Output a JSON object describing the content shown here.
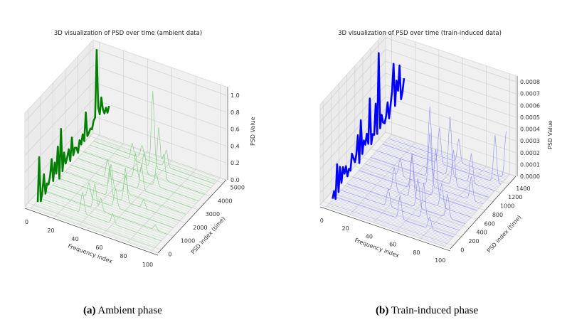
{
  "chart_data": [
    {
      "type": "line",
      "title": "3D visualization of PSD over time (ambient data)",
      "xlabel": "Frequency index",
      "ylabel": "PSD index (time)",
      "zlabel": "PSD Value",
      "xlim": [
        -5,
        105
      ],
      "ylim": [
        -250,
        5250
      ],
      "zlim": [
        0,
        1.1
      ],
      "xticks": [
        "0",
        "20",
        "40",
        "60",
        "80",
        "100"
      ],
      "yticks": [
        "0",
        "1000",
        "2000",
        "3000",
        "4000",
        "5000"
      ],
      "zticks": [
        "0.0",
        "0.2",
        "0.4",
        "0.6",
        "0.8",
        "1.0"
      ],
      "highlight_color": "#008000",
      "trace_color": "#8fcf8f",
      "num_traces": 40,
      "highlight_series": {
        "x": 0,
        "t_step": 125,
        "values": [
          0.05,
          0.56,
          0.02,
          0.1,
          0.3,
          0.05,
          0.15,
          0.12,
          0.2,
          0.38,
          0.1,
          0.3,
          0.15,
          0.45,
          0.05,
          0.62,
          0.1,
          0.3,
          0.15,
          0.2,
          0.28,
          0.12,
          0.38,
          0.15,
          0.22,
          0.2,
          0.12,
          0.25,
          0.18,
          0.28,
          0.18,
          0.5,
          0.2,
          0.22,
          0.25,
          0.22,
          0.3,
          0.32,
          1.1,
          0.4,
          0.3,
          0.48,
          0.32,
          0.25,
          0.3,
          0.22,
          0.28
        ]
      },
      "background_traces": [
        {
          "t": 500,
          "peaks": [
            [
              35,
              0.25
            ],
            [
              60,
              0.12
            ]
          ]
        },
        {
          "t": 1000,
          "peaks": [
            [
              40,
              0.3
            ],
            [
              45,
              0.15
            ],
            [
              90,
              0.06
            ]
          ]
        },
        {
          "t": 1500,
          "peaks": [
            [
              30,
              0.18
            ],
            [
              52,
              0.22
            ]
          ]
        },
        {
          "t": 2000,
          "peaks": [
            [
              42,
              0.35
            ],
            [
              55,
              0.4
            ],
            [
              70,
              0.1
            ]
          ]
        },
        {
          "t": 2500,
          "peaks": [
            [
              38,
              0.28
            ],
            [
              50,
              0.2
            ]
          ]
        },
        {
          "t": 3000,
          "peaks": [
            [
              30,
              0.22
            ],
            [
              58,
              0.3
            ]
          ]
        },
        {
          "t": 3500,
          "peaks": [
            [
              48,
              0.3
            ],
            [
              65,
              0.15
            ]
          ]
        },
        {
          "t": 4000,
          "peaks": [
            [
              50,
              0.25
            ],
            [
              62,
              0.6
            ],
            [
              66,
              0.3
            ]
          ]
        },
        {
          "t": 4500,
          "peaks": [
            [
              52,
              0.9
            ],
            [
              35,
              0.2
            ]
          ]
        },
        {
          "t": 4800,
          "peaks": [
            [
              40,
              0.15
            ],
            [
              60,
              0.2
            ]
          ]
        }
      ]
    },
    {
      "type": "line",
      "title": "3D visualization of PSD over time (train-induced data)",
      "xlabel": "Frequency index",
      "ylabel": "PSD index (time)",
      "zlabel": "PSD Value",
      "xlim": [
        -5,
        105
      ],
      "ylim": [
        -75,
        1575
      ],
      "zlim": [
        0,
        0.00085
      ],
      "xticks": [
        "0",
        "20",
        "40",
        "60",
        "80",
        "100"
      ],
      "yticks": [
        "0",
        "200",
        "400",
        "600",
        "800",
        "1000",
        "1200",
        "1400"
      ],
      "zticks": [
        "0.0000",
        "0.0001",
        "0.0002",
        "0.0003",
        "0.0004",
        "0.0005",
        "0.0006",
        "0.0007",
        "0.0008"
      ],
      "highlight_color": "#0000ff",
      "trace_color": "#9a9af0",
      "num_traces": 60,
      "highlight_series": {
        "x": 0,
        "t_step": 37.5,
        "values": [
          5e-05,
          0.0001,
          2e-05,
          0.0003,
          5e-05,
          0.00025,
          0.0001,
          0.00022,
          0.00015,
          0.0002,
          0.0001,
          0.00015,
          0.00012,
          0.00025,
          0.0002,
          0.00015,
          0.0002,
          0.00035,
          0.0001,
          0.00045,
          0.00015,
          0.00025,
          0.0002,
          0.00028,
          0.00018,
          0.00055,
          0.00015,
          0.00022,
          0.0002,
          0.00045,
          0.00018,
          0.00085,
          0.0002,
          0.0003,
          0.00022,
          0.0002,
          0.00025,
          0.00035,
          0.0002,
          0.0003,
          0.0004,
          0.00062,
          0.00025,
          0.00045,
          0.00035,
          0.00055,
          0.00025,
          0.0003,
          0.0004
        ]
      },
      "background_traces": [
        {
          "t": 150,
          "peaks": [
            [
              55,
              0.0002
            ],
            [
              80,
              0.0001
            ]
          ]
        },
        {
          "t": 300,
          "peaks": [
            [
              40,
              0.00015
            ],
            [
              70,
              0.0003
            ]
          ]
        },
        {
          "t": 450,
          "peaks": [
            [
              60,
              0.00025
            ],
            [
              85,
              0.0002
            ]
          ]
        },
        {
          "t": 600,
          "peaks": [
            [
              35,
              0.0002
            ],
            [
              50,
              0.00035
            ],
            [
              75,
              0.0002
            ]
          ]
        },
        {
          "t": 750,
          "peaks": [
            [
              45,
              0.0003
            ],
            [
              65,
              0.0004
            ]
          ]
        },
        {
          "t": 900,
          "peaks": [
            [
              55,
              0.00045
            ],
            [
              30,
              0.00015
            ],
            [
              90,
              0.0002
            ]
          ]
        },
        {
          "t": 1050,
          "peaks": [
            [
              50,
              0.0006
            ],
            [
              70,
              0.0003
            ]
          ]
        },
        {
          "t": 1200,
          "peaks": [
            [
              62,
              0.0005
            ],
            [
              80,
              0.00025
            ]
          ]
        },
        {
          "t": 1350,
          "peaks": [
            [
              48,
              0.0003
            ],
            [
              95,
              0.0004
            ]
          ]
        },
        {
          "t": 1480,
          "peaks": [
            [
              60,
              0.0002
            ],
            [
              100,
              0.0004
            ]
          ]
        }
      ]
    }
  ],
  "captions": [
    {
      "label": "(a)",
      "text": " Ambient phase"
    },
    {
      "label": "(b)",
      "text": " Train-induced phase"
    }
  ]
}
